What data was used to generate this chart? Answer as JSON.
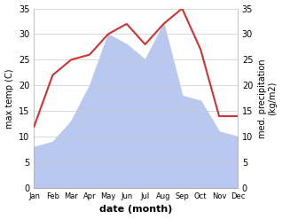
{
  "months": [
    "Jan",
    "Feb",
    "Mar",
    "Apr",
    "May",
    "Jun",
    "Jul",
    "Aug",
    "Sep",
    "Oct",
    "Nov",
    "Dec"
  ],
  "temperature": [
    12,
    22,
    25,
    26,
    30,
    32,
    28,
    32,
    35,
    27,
    14,
    14
  ],
  "precipitation": [
    8,
    9,
    13,
    20,
    30,
    28,
    25,
    32,
    18,
    17,
    11,
    10
  ],
  "temp_color": "#cc3333",
  "precip_color": "#b8c8ee",
  "ylabel_left": "max temp (C)",
  "ylabel_right": "med. precipitation\n(kg/m2)",
  "xlabel": "date (month)",
  "ylim": [
    0,
    35
  ],
  "yticks": [
    0,
    5,
    10,
    15,
    20,
    25,
    30,
    35
  ],
  "background_color": "#ffffff",
  "grid_color": "#cccccc",
  "spine_color": "#aaaaaa"
}
